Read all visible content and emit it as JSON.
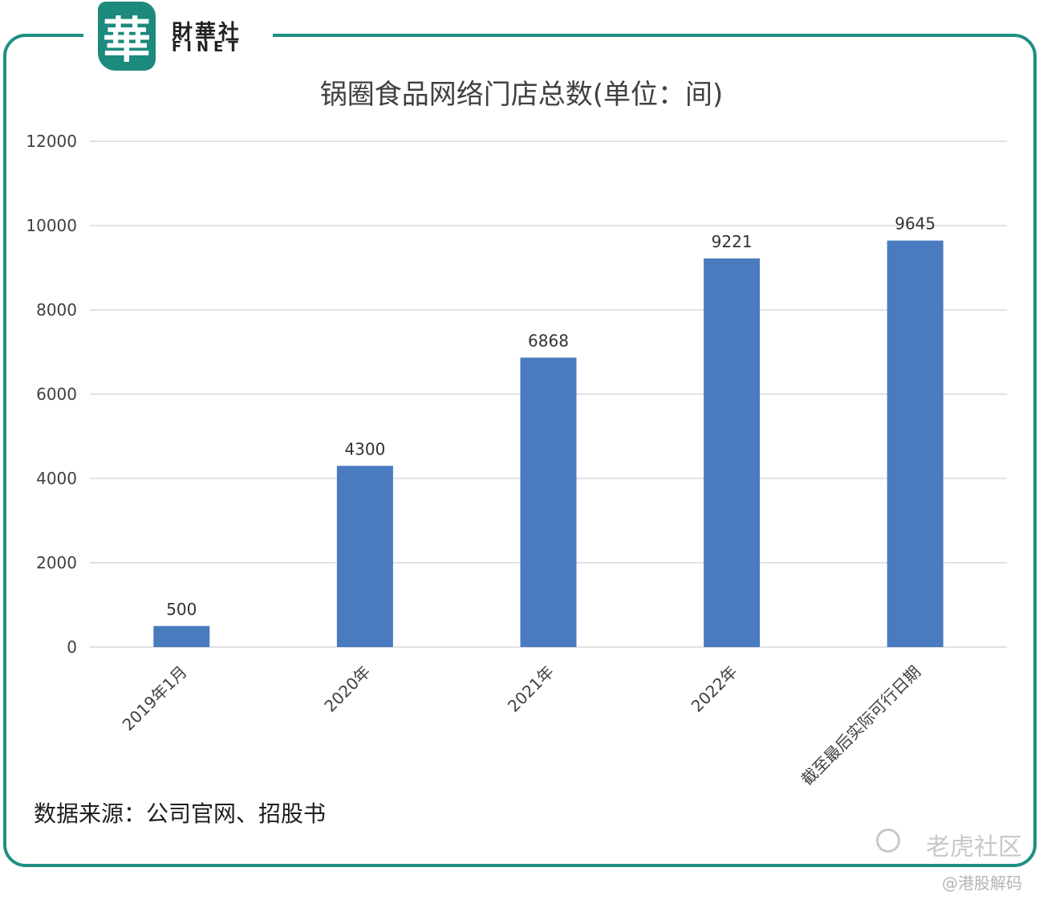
{
  "brand": {
    "seal_char": "華",
    "name_cn": "財華社",
    "name_en": "FINET"
  },
  "colors": {
    "frame": "#1f8f84",
    "bar": "#4a7bbf",
    "grid": "#d9d9d9",
    "watermark": "#c8c8c8"
  },
  "chart_data": {
    "type": "bar",
    "title": "锅圈食品网络门店总数(单位：间)",
    "categories": [
      "2019年1月",
      "2020年",
      "2021年",
      "2022年",
      "截至最后实际可行日期"
    ],
    "values": [
      500,
      4300,
      6868,
      9221,
      9645
    ],
    "data_labels": [
      "500",
      "4300",
      "6868",
      "9221",
      "9645"
    ],
    "ylim": [
      0,
      12000
    ],
    "yticks": [
      0,
      2000,
      4000,
      6000,
      8000,
      10000,
      12000
    ],
    "xlabel": "",
    "ylabel": "",
    "grid": true,
    "legend": "none"
  },
  "source_note": "数据来源：公司官网、招股书",
  "watermark": {
    "brand": "老虎社区",
    "handle": "@港股解码"
  }
}
